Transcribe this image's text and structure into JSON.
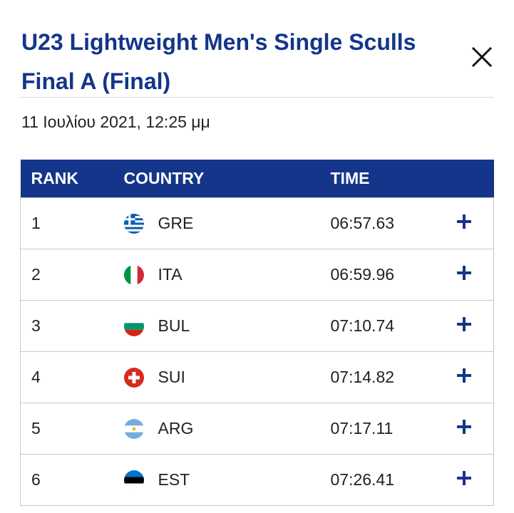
{
  "header": {
    "title_line1": "U23 Lightweight Men's Single Sculls",
    "title_line2": "Final A (Final)",
    "date": "11 Ιουλίου 2021, 12:25 μμ",
    "close_icon": "close-icon"
  },
  "table": {
    "columns": {
      "rank": "RANK",
      "country": "COUNTRY",
      "time": "TIME"
    },
    "header_color": "#14358a",
    "rows": [
      {
        "rank": "1",
        "country": "GRE",
        "flag": "greece-flag-icon",
        "time": "06:57.63",
        "expand": "plus-icon"
      },
      {
        "rank": "2",
        "country": "ITA",
        "flag": "italy-flag-icon",
        "time": "06:59.96",
        "expand": "plus-icon"
      },
      {
        "rank": "3",
        "country": "BUL",
        "flag": "bulgaria-flag-icon",
        "time": "07:10.74",
        "expand": "plus-icon"
      },
      {
        "rank": "4",
        "country": "SUI",
        "flag": "switzerland-flag-icon",
        "time": "07:14.82",
        "expand": "plus-icon"
      },
      {
        "rank": "5",
        "country": "ARG",
        "flag": "argentina-flag-icon",
        "time": "07:17.11",
        "expand": "plus-icon"
      },
      {
        "rank": "6",
        "country": "EST",
        "flag": "estonia-flag-icon",
        "time": "07:26.41",
        "expand": "plus-icon"
      }
    ]
  }
}
